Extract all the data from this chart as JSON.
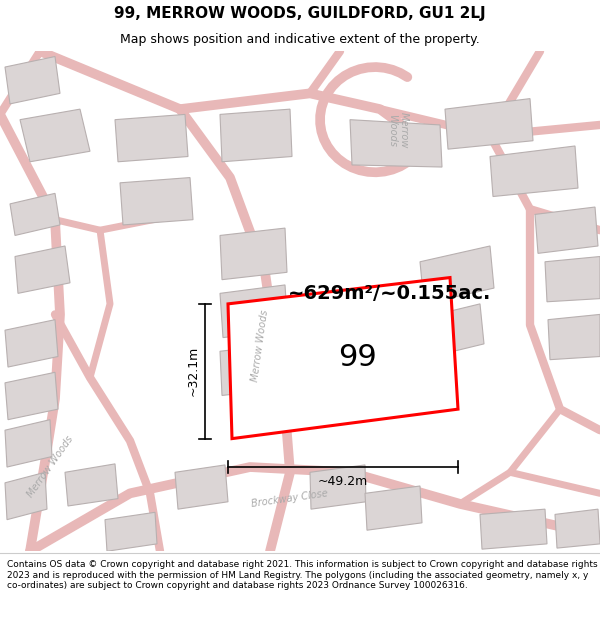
{
  "title": "99, MERROW WOODS, GUILDFORD, GU1 2LJ",
  "subtitle": "Map shows position and indicative extent of the property.",
  "area_text": "~629m²/~0.155ac.",
  "number_label": "99",
  "dim_width": "~49.2m",
  "dim_height": "~32.1m",
  "footer": "Contains OS data © Crown copyright and database right 2021. This information is subject to Crown copyright and database rights 2023 and is reproduced with the permission of HM Land Registry. The polygons (including the associated geometry, namely x, y co-ordinates) are subject to Crown copyright and database rights 2023 Ordnance Survey 100026316.",
  "map_bg": "#f2eeee",
  "road_color": "#e8b8b8",
  "building_color": "#dbd5d5",
  "building_edge": "#b8b0b0",
  "plot_color": "#ff0000",
  "title_fontsize": 11,
  "subtitle_fontsize": 9,
  "footer_fontsize": 6.5,
  "road_label_color": "#aaaaaa",
  "road_label_fontsize": 7,
  "area_fontsize": 14,
  "number_fontsize": 22,
  "dim_fontsize": 9
}
